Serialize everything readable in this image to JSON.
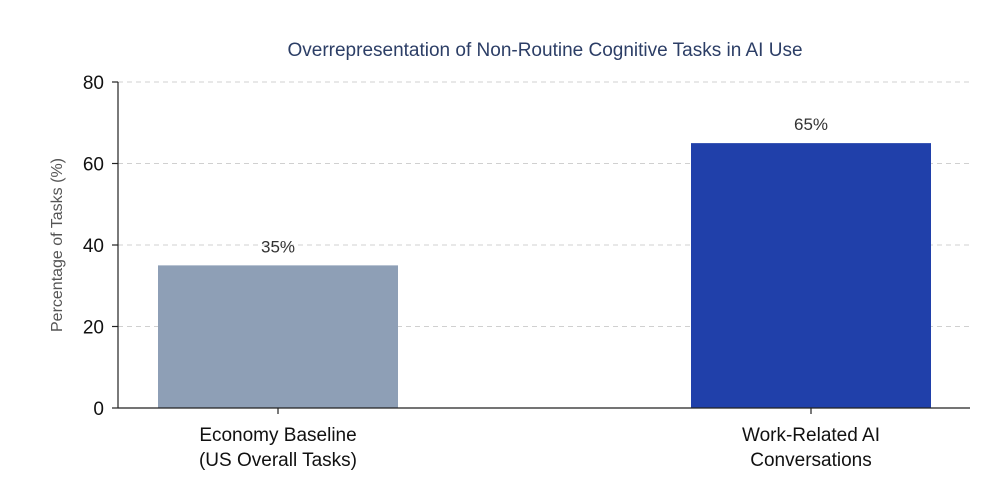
{
  "chart_data": {
    "type": "bar",
    "title": "Overrepresentation of Non-Routine Cognitive Tasks in AI Use",
    "xlabel": "",
    "ylabel": "Percentage of Tasks (%)",
    "ylim": [
      0,
      80
    ],
    "yticks": [
      0,
      20,
      40,
      60,
      80
    ],
    "grid": true,
    "categories": [
      [
        "Economy Baseline",
        "(US Overall Tasks)"
      ],
      [
        "Work-Related AI",
        "Conversations"
      ]
    ],
    "values": [
      35,
      65
    ],
    "data_labels": [
      "35%",
      "65%"
    ],
    "colors": {
      "bars": [
        "#8e9fb6",
        "#2040aa"
      ],
      "title": "#2c3e66",
      "grid": "#d0d0d0",
      "axis": "#222222"
    }
  }
}
